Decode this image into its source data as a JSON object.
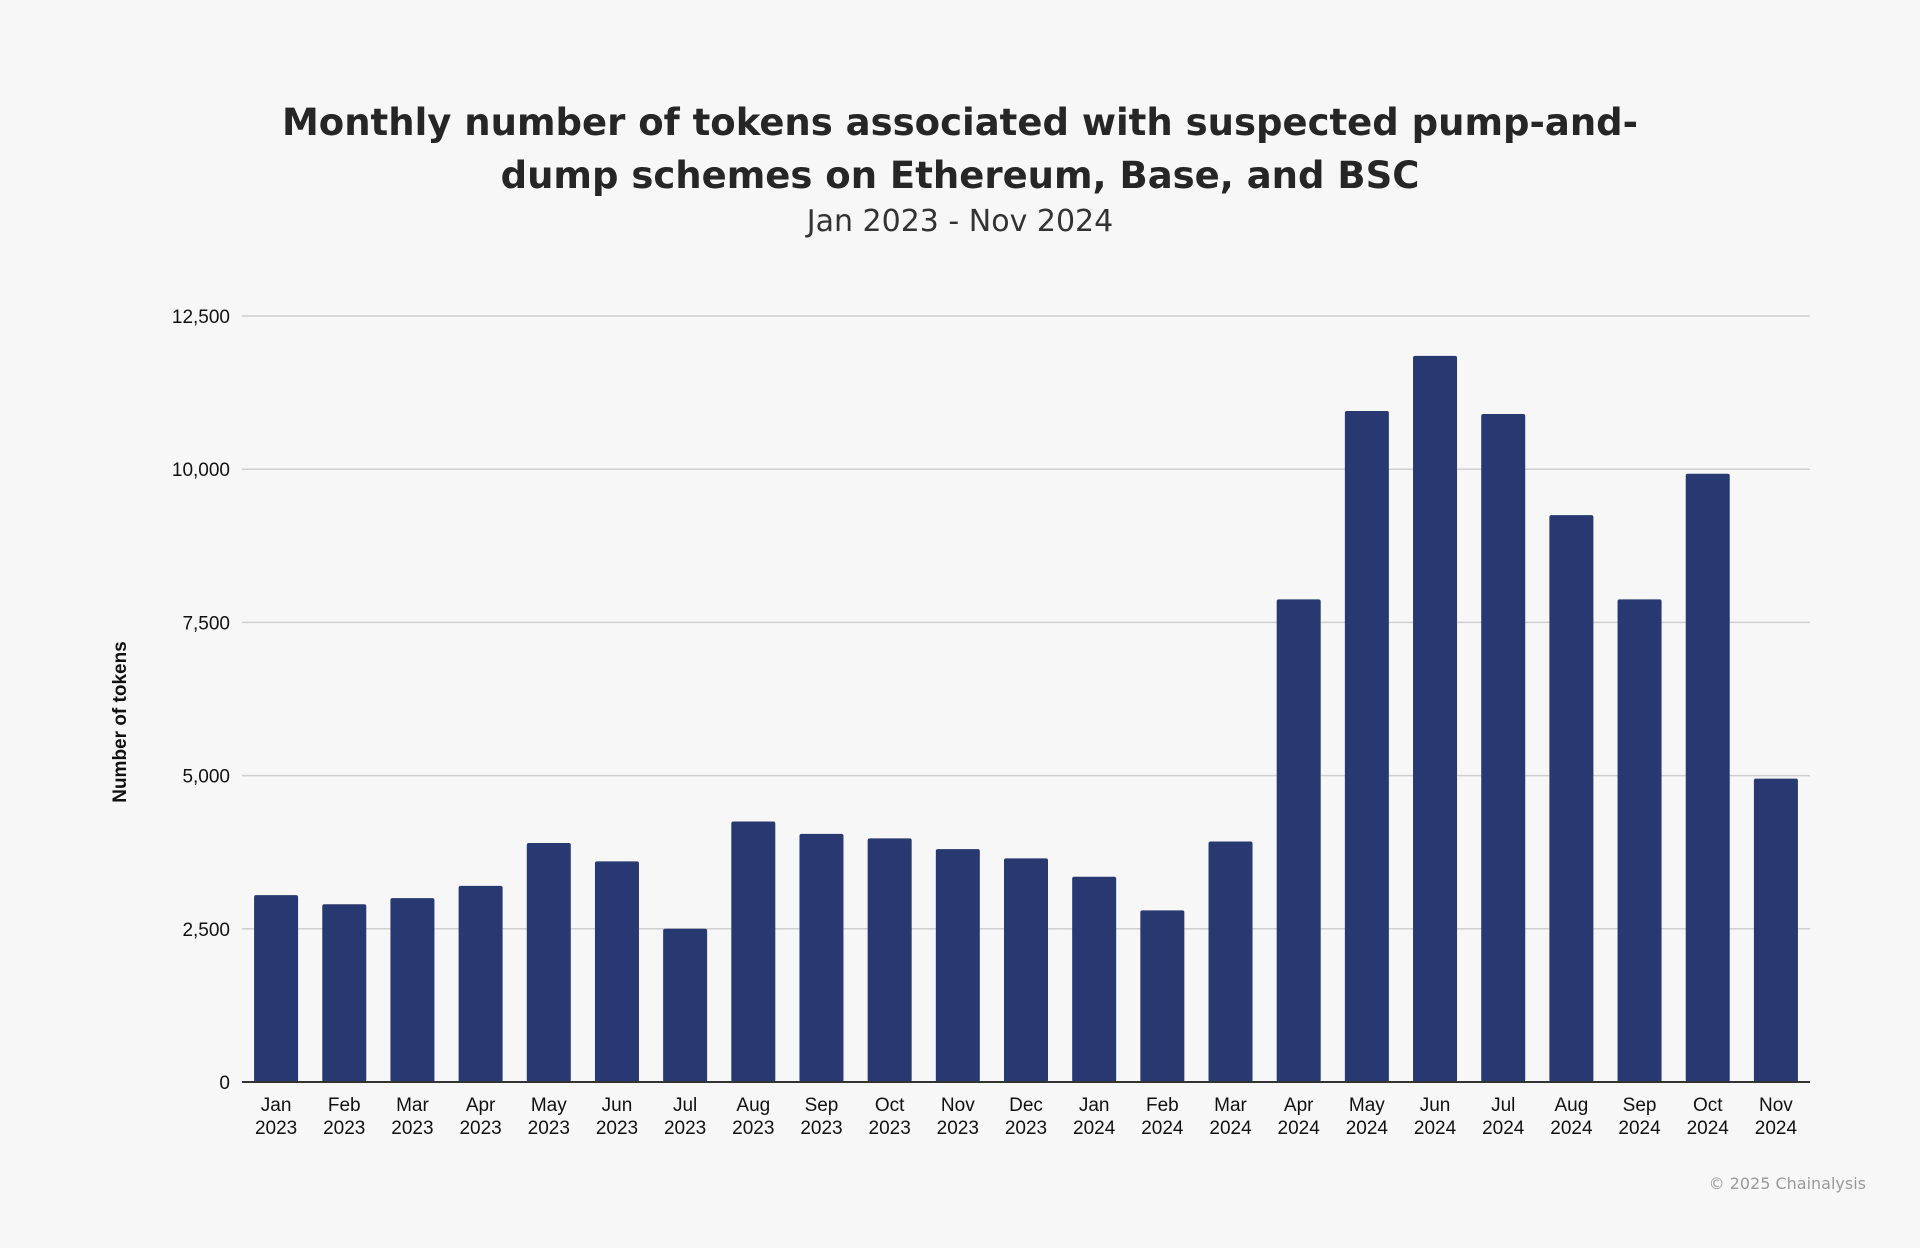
{
  "chart_data": {
    "type": "bar",
    "title": "Monthly number of tokens associated with suspected pump-and-dump schemes on Ethereum, Base, and BSC",
    "subtitle": "Jan 2023 - Nov 2024",
    "xlabel": "",
    "ylabel": "Number of tokens",
    "ylim": [
      0,
      12500
    ],
    "yticks": [
      "0",
      "2,500",
      "5,000",
      "7,500",
      "10,000",
      "12,500"
    ],
    "ytick_values": [
      0,
      2500,
      5000,
      7500,
      10000,
      12500
    ],
    "grid": true,
    "bar_color": "#283870",
    "categories": [
      [
        "Jan",
        "2023"
      ],
      [
        "Feb",
        "2023"
      ],
      [
        "Mar",
        "2023"
      ],
      [
        "Apr",
        "2023"
      ],
      [
        "May",
        "2023"
      ],
      [
        "Jun",
        "2023"
      ],
      [
        "Jul",
        "2023"
      ],
      [
        "Aug",
        "2023"
      ],
      [
        "Sep",
        "2023"
      ],
      [
        "Oct",
        "2023"
      ],
      [
        "Nov",
        "2023"
      ],
      [
        "Dec",
        "2023"
      ],
      [
        "Jan",
        "2024"
      ],
      [
        "Feb",
        "2024"
      ],
      [
        "Mar",
        "2024"
      ],
      [
        "Apr",
        "2024"
      ],
      [
        "May",
        "2024"
      ],
      [
        "Jun",
        "2024"
      ],
      [
        "Jul",
        "2024"
      ],
      [
        "Aug",
        "2024"
      ],
      [
        "Sep",
        "2024"
      ],
      [
        "Oct",
        "2024"
      ],
      [
        "Nov",
        "2024"
      ]
    ],
    "values": [
      3050,
      2900,
      3000,
      3200,
      3900,
      3600,
      2500,
      4250,
      4050,
      3975,
      3800,
      3650,
      3350,
      2800,
      3925,
      7875,
      10950,
      11850,
      10900,
      9250,
      7875,
      9925,
      4950
    ]
  },
  "footer": {
    "copyright": "© 2025 Chainalysis"
  }
}
